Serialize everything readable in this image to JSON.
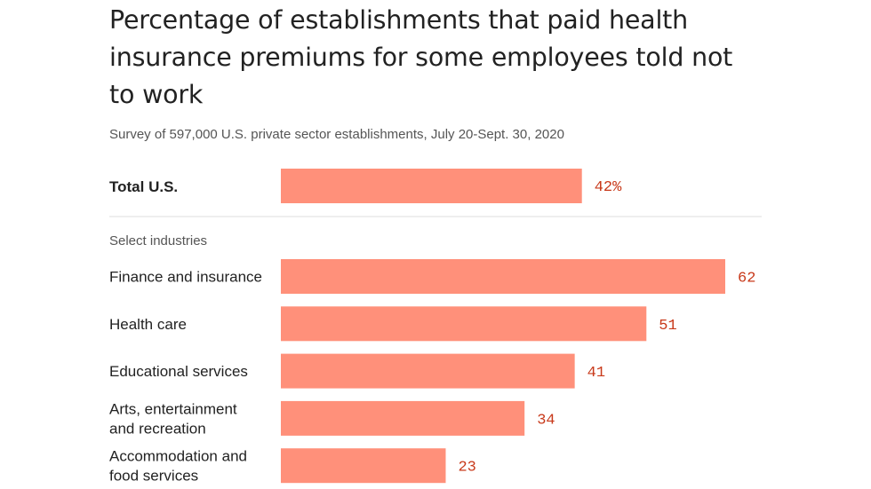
{
  "chart_data": {
    "type": "bar",
    "orientation": "horizontal",
    "title": "Percentage of establishments that paid health insurance premiums for some employees told not to work",
    "subtitle": "Survey of 597,000 U.S. private sector establishments, July 20-Sept. 30, 2020",
    "bar_color": "#ff907a",
    "value_color": "#c8391a",
    "xlim": [
      0,
      62
    ],
    "total": {
      "label": "Total U.S.",
      "value": 42,
      "value_label": "42%"
    },
    "section_label": "Select industries",
    "categories": [
      [
        "Finance and insurance"
      ],
      [
        "Health care"
      ],
      [
        "Educational services"
      ],
      [
        "Arts, entertainment",
        "and recreation"
      ],
      [
        "Accommodation and",
        "food services"
      ]
    ],
    "values": [
      62,
      51,
      41,
      34,
      23
    ]
  }
}
